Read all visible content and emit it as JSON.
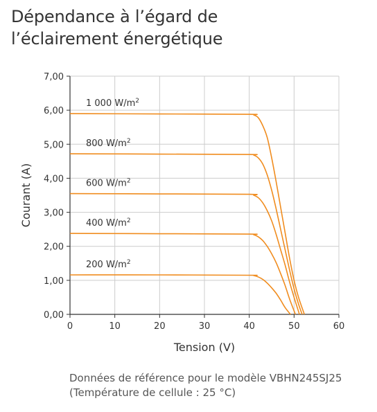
{
  "title_lines": [
    "Dépendance à l’égard de",
    "l’éclairement énergétique"
  ],
  "note_lines": [
    "Données de référence pour le modèle VBHN245SJ25",
    "(Température de cellule : 25 °C)"
  ],
  "colors": {
    "curve": "#f08c1e",
    "grid": "#cccccc",
    "axis": "#333333",
    "text": "#333333"
  },
  "chart_data": {
    "type": "line",
    "title": "",
    "xlabel": "Tension (V)",
    "ylabel": "Courant (A)",
    "xlim": [
      0,
      60
    ],
    "ylim": [
      0,
      7
    ],
    "xticks": [
      0,
      10,
      20,
      30,
      40,
      50,
      60
    ],
    "xtick_labels": [
      "0",
      "10",
      "20",
      "30",
      "40",
      "50",
      "60"
    ],
    "yticks": [
      0,
      1,
      2,
      3,
      4,
      5,
      6,
      7
    ],
    "ytick_labels": [
      "0,00",
      "1,00",
      "2,00",
      "3,00",
      "4,00",
      "5,00",
      "6,00",
      "7,00"
    ],
    "grid": true,
    "series": [
      {
        "name": "1 000 W/m²",
        "label_base": "1 000 W/m",
        "label_sup": "2",
        "x": [
          0,
          20,
          40,
          41,
          42,
          43,
          44,
          45,
          46,
          47,
          48,
          49,
          50,
          51,
          52.3
        ],
        "y": [
          5.9,
          5.89,
          5.88,
          5.86,
          5.78,
          5.55,
          5.2,
          4.6,
          3.9,
          3.15,
          2.4,
          1.65,
          1.0,
          0.5,
          0.0
        ]
      },
      {
        "name": "800 W/m²",
        "label_base": "800 W/m",
        "label_sup": "2",
        "x": [
          0,
          20,
          40,
          41,
          42,
          43,
          44,
          45,
          46,
          47,
          48,
          49,
          50,
          51,
          51.8
        ],
        "y": [
          4.72,
          4.71,
          4.7,
          4.68,
          4.6,
          4.42,
          4.1,
          3.65,
          3.1,
          2.5,
          1.9,
          1.3,
          0.75,
          0.3,
          0.0
        ]
      },
      {
        "name": "600 W/m²",
        "label_base": "600 W/m",
        "label_sup": "2",
        "x": [
          0,
          20,
          40,
          41,
          42,
          43,
          44,
          45,
          46,
          47,
          48,
          49,
          50,
          51.2
        ],
        "y": [
          3.55,
          3.54,
          3.53,
          3.5,
          3.43,
          3.28,
          3.05,
          2.75,
          2.35,
          1.9,
          1.45,
          0.95,
          0.5,
          0.0
        ]
      },
      {
        "name": "400 W/m²",
        "label_base": "400 W/m",
        "label_sup": "2",
        "x": [
          0,
          20,
          40,
          41,
          42,
          43,
          44,
          45,
          46,
          47,
          48,
          49,
          50.3
        ],
        "y": [
          2.38,
          2.37,
          2.36,
          2.34,
          2.28,
          2.17,
          2.0,
          1.78,
          1.52,
          1.2,
          0.85,
          0.45,
          0.0
        ]
      },
      {
        "name": "200 W/m²",
        "label_base": "200 W/m",
        "label_sup": "2",
        "x": [
          0,
          20,
          40,
          41,
          42,
          43,
          44,
          45,
          46,
          47,
          48,
          49.2
        ],
        "y": [
          1.16,
          1.16,
          1.15,
          1.14,
          1.1,
          1.03,
          0.92,
          0.78,
          0.62,
          0.42,
          0.2,
          0.0
        ]
      }
    ]
  }
}
